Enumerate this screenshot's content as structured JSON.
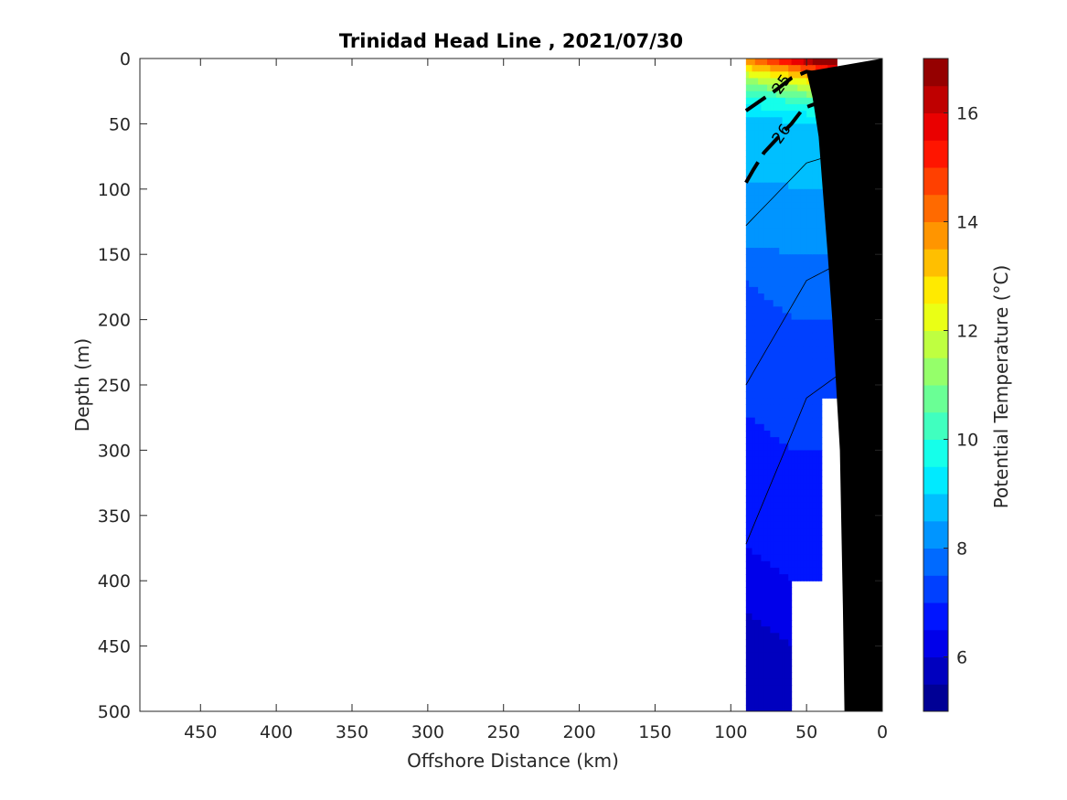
{
  "chart_data": {
    "type": "heatmap",
    "title": "Trinidad Head Line , 2021/07/30",
    "xlabel": "Offshore Distance (km)",
    "ylabel": "Depth (m)",
    "colorbar_label": "Potential Temperature (°C)",
    "x_reversed": true,
    "y_reversed": true,
    "xlim": [
      490,
      0
    ],
    "ylim": [
      0,
      500
    ],
    "x_ticks": [
      "450",
      "400",
      "350",
      "300",
      "250",
      "200",
      "150",
      "100",
      "50",
      "0"
    ],
    "x_tick_values": [
      450,
      400,
      350,
      300,
      250,
      200,
      150,
      100,
      50,
      0
    ],
    "y_ticks": [
      "0",
      "50",
      "100",
      "150",
      "200",
      "250",
      "300",
      "350",
      "400",
      "450",
      "500"
    ],
    "y_tick_values": [
      0,
      50,
      100,
      150,
      200,
      250,
      300,
      350,
      400,
      450,
      500
    ],
    "colorbar_range": [
      5,
      17
    ],
    "colorbar_step": 0.5,
    "colorbar_ticks": [
      "6",
      "8",
      "10",
      "12",
      "14",
      "16"
    ],
    "colorbar_tick_values": [
      6,
      8,
      10,
      12,
      14,
      16
    ],
    "colormap": "jet",
    "data_extent_x": [
      30,
      90
    ],
    "field_approx": [
      {
        "depth": 0,
        "temperature": 17.0
      },
      {
        "depth": 10,
        "temperature": 14.0
      },
      {
        "depth": 20,
        "temperature": 12.0
      },
      {
        "depth": 35,
        "temperature": 10.0
      },
      {
        "depth": 50,
        "temperature": 9.0
      },
      {
        "depth": 100,
        "temperature": 8.5
      },
      {
        "depth": 150,
        "temperature": 8.0
      },
      {
        "depth": 200,
        "temperature": 7.5
      },
      {
        "depth": 300,
        "temperature": 7.0
      },
      {
        "depth": 400,
        "temperature": 6.5
      },
      {
        "depth": 500,
        "temperature": 5.5
      }
    ],
    "density_contours": [
      {
        "label": "25",
        "points": [
          [
            90,
            40
          ],
          [
            80,
            32
          ],
          [
            70,
            24
          ],
          [
            60,
            15
          ],
          [
            50,
            10
          ],
          [
            40,
            12
          ],
          [
            30,
            15
          ]
        ]
      },
      {
        "label": "26",
        "points": [
          [
            90,
            95
          ],
          [
            85,
            85
          ],
          [
            78,
            72
          ],
          [
            70,
            62
          ],
          [
            60,
            50
          ],
          [
            52,
            38
          ],
          [
            45,
            35
          ],
          [
            30,
            42
          ]
        ]
      }
    ],
    "bathymetry": [
      [
        25,
        500
      ],
      [
        26,
        420
      ],
      [
        28,
        300
      ],
      [
        33,
        200
      ],
      [
        36,
        150
      ],
      [
        38,
        120
      ],
      [
        42,
        60
      ],
      [
        46,
        30
      ],
      [
        50,
        10
      ],
      [
        0,
        0
      ]
    ],
    "data_mask": [
      {
        "x": 90,
        "max_depth": 500
      },
      {
        "x": 60,
        "max_depth": 500
      },
      {
        "x": 60,
        "min_depth": 410
      },
      {
        "x": 50,
        "min_depth": 400
      },
      {
        "x": 40,
        "min_depth": 260
      },
      {
        "x": 30,
        "min_depth": 260
      }
    ]
  }
}
